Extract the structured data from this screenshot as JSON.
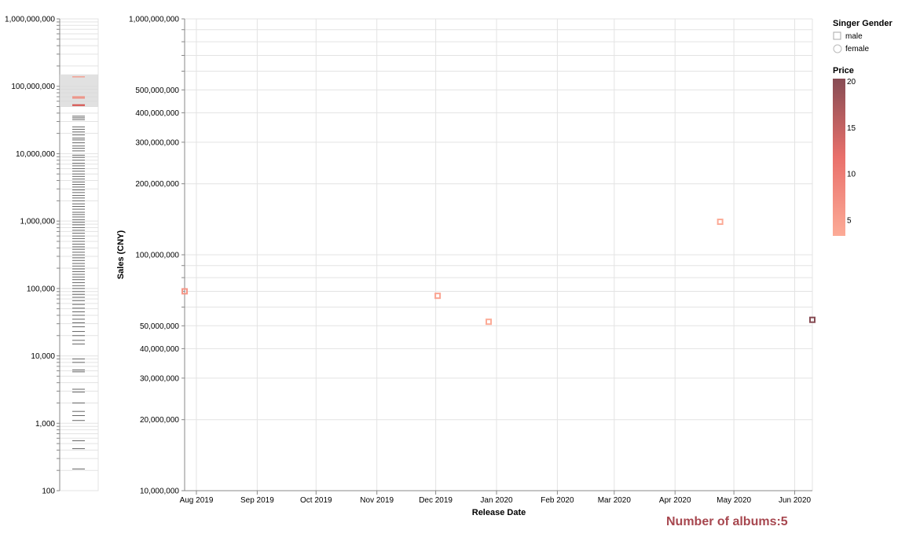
{
  "count_label": "Number of albums:",
  "count_value": "5",
  "legend": {
    "gender_title": "Singer Gender",
    "gender_items": [
      {
        "label": "male",
        "shape": "square"
      },
      {
        "label": "female",
        "shape": "circle"
      }
    ],
    "price_title": "Price",
    "price_ticks": [
      20,
      15,
      10,
      5
    ],
    "price_domain": [
      3,
      20
    ],
    "price_colors": [
      "#fcab97",
      "#e9706b",
      "#874c54"
    ]
  },
  "chart_data": [
    {
      "type": "scatter",
      "title": "",
      "xlabel": "Release Date",
      "ylabel": "Sales (CNY)",
      "y_scale": "log",
      "ylim": [
        10000000,
        1000000000
      ],
      "xlim": [
        "2019-07-26",
        "2020-06-10"
      ],
      "x_ticks": [
        {
          "date": "2019-08-01",
          "label": "Aug 2019"
        },
        {
          "date": "2019-09-01",
          "label": "Sep 2019"
        },
        {
          "date": "2019-10-01",
          "label": "Oct 2019"
        },
        {
          "date": "2019-11-01",
          "label": "Nov 2019"
        },
        {
          "date": "2019-12-01",
          "label": "Dec 2019"
        },
        {
          "date": "2020-01-01",
          "label": "Jan 2020"
        },
        {
          "date": "2020-02-01",
          "label": "Feb 2020"
        },
        {
          "date": "2020-03-01",
          "label": "Mar 2020"
        },
        {
          "date": "2020-04-01",
          "label": "Apr 2020"
        },
        {
          "date": "2020-05-01",
          "label": "May 2020"
        },
        {
          "date": "2020-06-01",
          "label": "Jun 2020"
        }
      ],
      "y_ticks": [
        {
          "value": 10000000,
          "label": "10,000,000"
        },
        {
          "value": 20000000,
          "label": "20,000,000"
        },
        {
          "value": 30000000,
          "label": "30,000,000"
        },
        {
          "value": 40000000,
          "label": "40,000,000"
        },
        {
          "value": 50000000,
          "label": "50,000,000"
        },
        {
          "value": 100000000,
          "label": "100,000,000"
        },
        {
          "value": 200000000,
          "label": "200,000,000"
        },
        {
          "value": 300000000,
          "label": "300,000,000"
        },
        {
          "value": 400000000,
          "label": "400,000,000"
        },
        {
          "value": 500000000,
          "label": "500,000,000"
        },
        {
          "value": 1000000000,
          "label": "1,000,000,000"
        }
      ],
      "points": [
        {
          "date": "2019-07-26",
          "sales": 70000000,
          "price": 6,
          "gender": "male"
        },
        {
          "date": "2019-12-02",
          "sales": 67000000,
          "price": 4,
          "gender": "male"
        },
        {
          "date": "2019-12-28",
          "sales": 52000000,
          "price": 3,
          "gender": "male"
        },
        {
          "date": "2020-04-24",
          "sales": 138000000,
          "price": 3,
          "gender": "male"
        },
        {
          "date": "2020-06-10",
          "sales": 53000000,
          "price": 20,
          "gender": "male"
        }
      ]
    },
    {
      "type": "strip",
      "title": "",
      "y_scale": "log",
      "ylim": [
        100,
        1000000000
      ],
      "brush_range": [
        50000000,
        150000000
      ],
      "y_ticks": [
        {
          "value": 100,
          "label": "100"
        },
        {
          "value": 1000,
          "label": "1,000"
        },
        {
          "value": 10000,
          "label": "10,000"
        },
        {
          "value": 100000,
          "label": "100,000"
        },
        {
          "value": 1000000,
          "label": "1,000,000"
        },
        {
          "value": 10000000,
          "label": "10,000,000"
        },
        {
          "value": 100000000,
          "label": "100,000,000"
        },
        {
          "value": 1000000000,
          "label": "1,000,000,000"
        }
      ],
      "highlighted_values": [
        138000000,
        70000000,
        67000000,
        53000000,
        52000000
      ],
      "gray_values": [
        36000000,
        34000000,
        32000000,
        25000000,
        23000000,
        21000000,
        19000000,
        17000000,
        16000000,
        14500000,
        13000000,
        12000000,
        11000000,
        9500000,
        8800000,
        8000000,
        7200000,
        6600000,
        6000000,
        5500000,
        5000000,
        4600000,
        4200000,
        3800000,
        3500000,
        3200000,
        2900000,
        2650000,
        2400000,
        2200000,
        2000000,
        1800000,
        1650000,
        1500000,
        1350000,
        1250000,
        1150000,
        1050000,
        960000,
        880000,
        800000,
        730000,
        660000,
        600000,
        550000,
        500000,
        455000,
        415000,
        380000,
        345000,
        315000,
        285000,
        260000,
        235000,
        215000,
        195000,
        178000,
        162000,
        148000,
        135000,
        122000,
        110000,
        100000,
        90000,
        82000,
        74000,
        66000,
        58000,
        51000,
        45000,
        40000,
        35000,
        31000,
        27000,
        23000,
        20000,
        17000,
        15000,
        9000,
        8000,
        6200,
        5800,
        3200,
        2900,
        2000,
        1500,
        1300,
        1100,
        550,
        420,
        210
      ]
    }
  ]
}
